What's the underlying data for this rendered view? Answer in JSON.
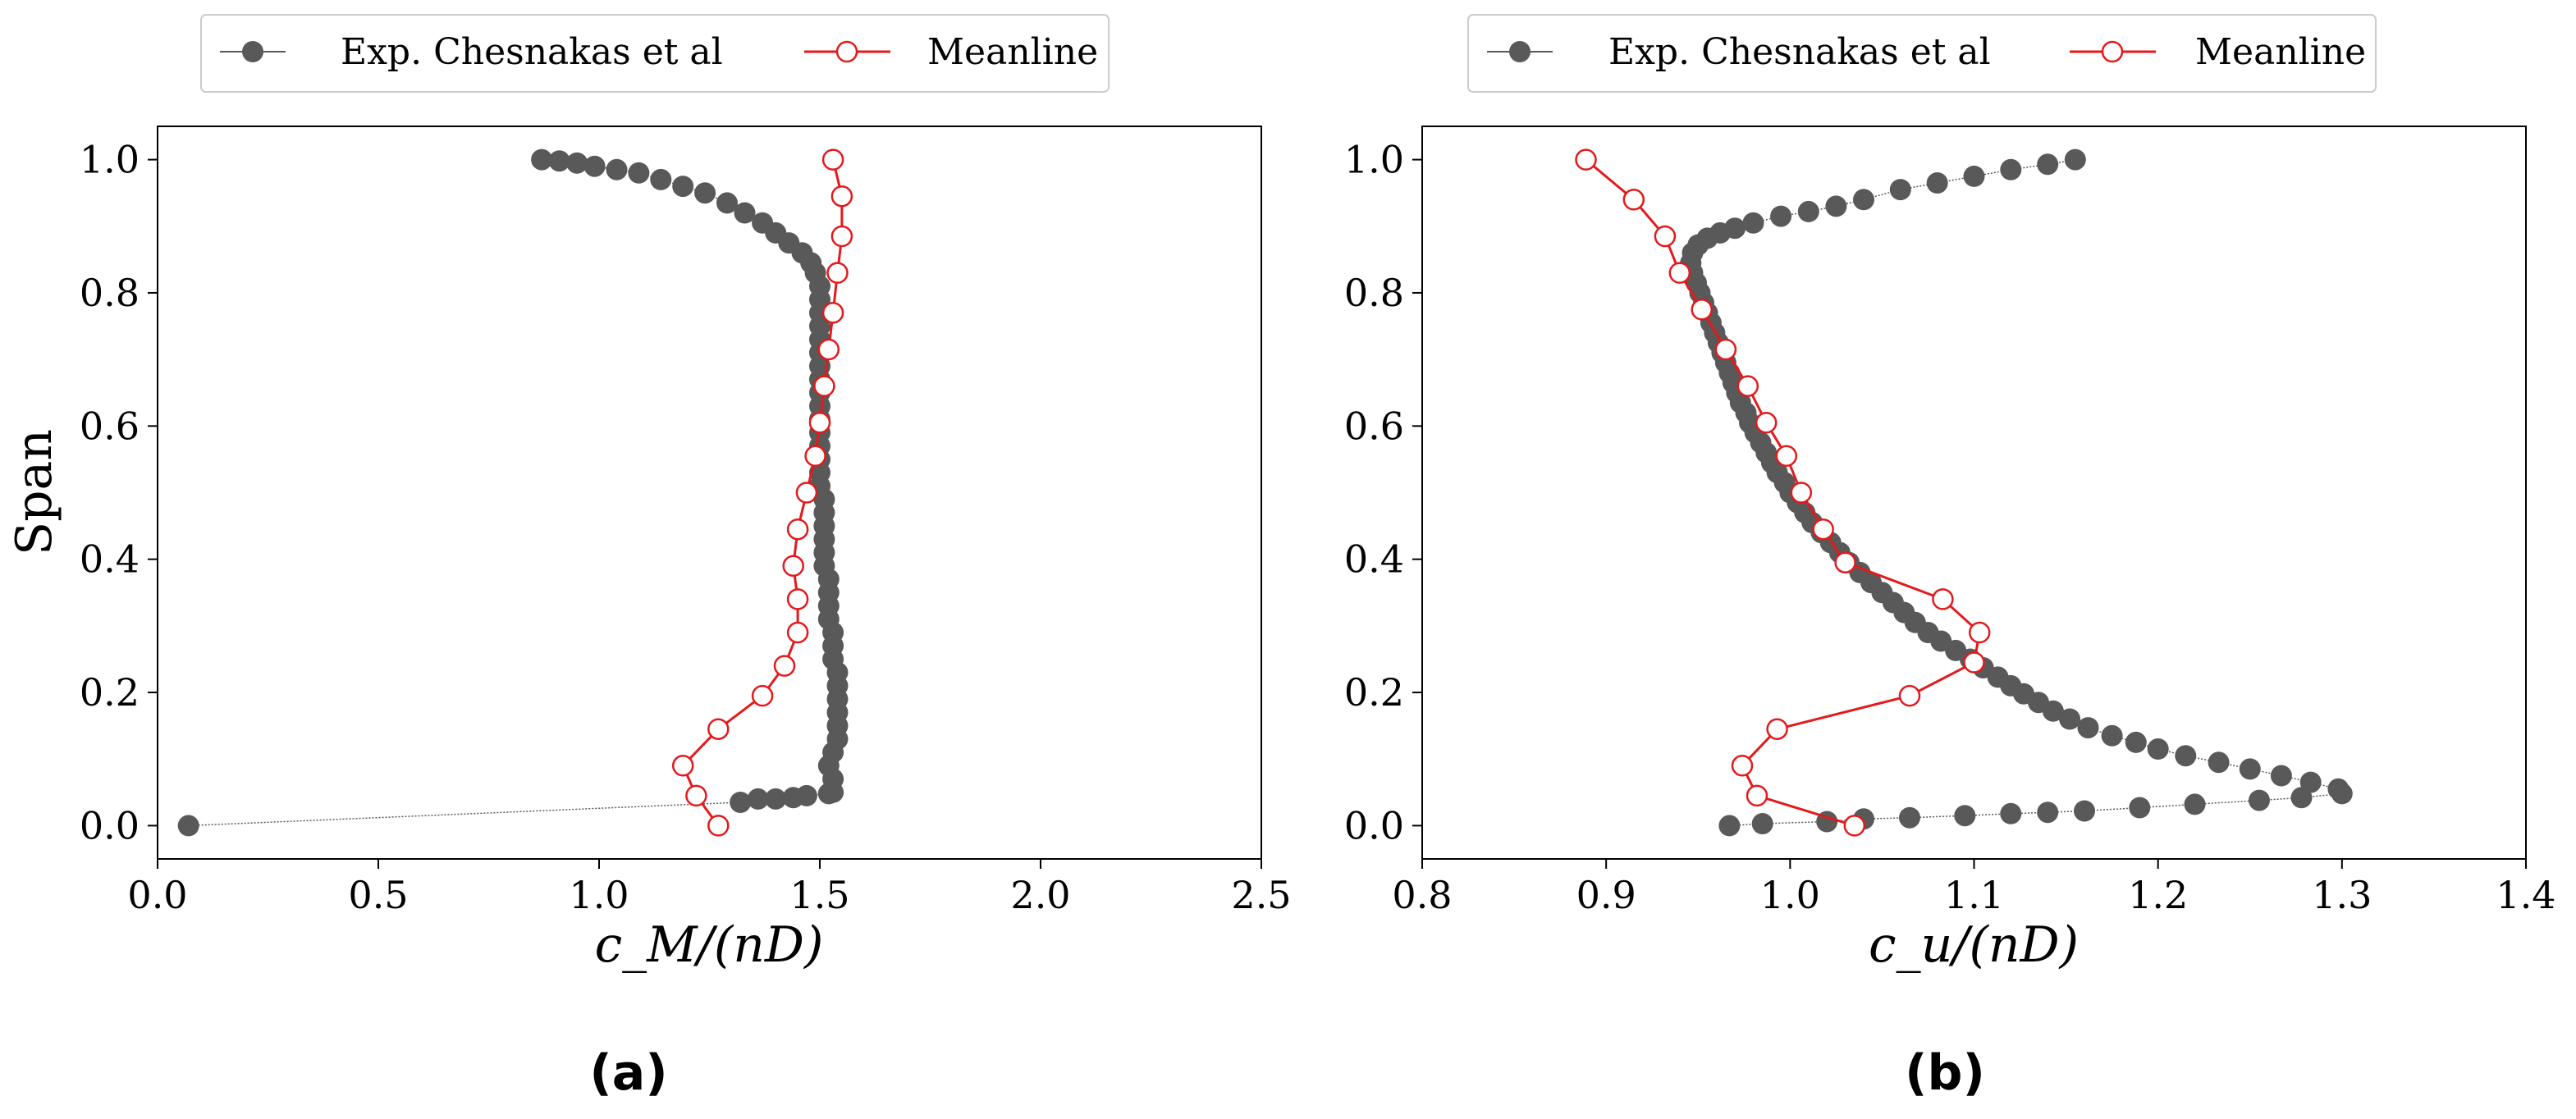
{
  "chart_data": [
    {
      "type": "line",
      "panel_label": "(a)",
      "xlabel": "c_M/(nD)",
      "ylabel": "Span",
      "xlim": [
        0.0,
        2.5
      ],
      "ylim": [
        -0.05,
        1.05
      ],
      "xticks": [
        "0.0",
        "0.5",
        "1.0",
        "1.5",
        "2.0",
        "2.5"
      ],
      "yticks": [
        "0.0",
        "0.2",
        "0.4",
        "0.6",
        "0.8",
        "1.0"
      ],
      "legend_position": "top-center-outside",
      "series": [
        {
          "name": "Exp. Chesnakas et al",
          "color": "#595959",
          "marker": "filled-circle",
          "line": "thin-dotted-gray",
          "points": [
            [
              0.07,
              0.0
            ],
            [
              1.32,
              0.035
            ],
            [
              1.36,
              0.04
            ],
            [
              1.4,
              0.04
            ],
            [
              1.44,
              0.042
            ],
            [
              1.47,
              0.045
            ],
            [
              1.52,
              0.048
            ],
            [
              1.53,
              0.05
            ],
            [
              1.53,
              0.07
            ],
            [
              1.52,
              0.09
            ],
            [
              1.53,
              0.11
            ],
            [
              1.54,
              0.13
            ],
            [
              1.54,
              0.15
            ],
            [
              1.54,
              0.17
            ],
            [
              1.54,
              0.19
            ],
            [
              1.54,
              0.21
            ],
            [
              1.54,
              0.23
            ],
            [
              1.53,
              0.25
            ],
            [
              1.53,
              0.27
            ],
            [
              1.53,
              0.29
            ],
            [
              1.52,
              0.31
            ],
            [
              1.52,
              0.33
            ],
            [
              1.52,
              0.35
            ],
            [
              1.52,
              0.37
            ],
            [
              1.51,
              0.39
            ],
            [
              1.51,
              0.41
            ],
            [
              1.51,
              0.43
            ],
            [
              1.51,
              0.45
            ],
            [
              1.51,
              0.47
            ],
            [
              1.51,
              0.49
            ],
            [
              1.5,
              0.51
            ],
            [
              1.5,
              0.53
            ],
            [
              1.5,
              0.55
            ],
            [
              1.5,
              0.57
            ],
            [
              1.5,
              0.59
            ],
            [
              1.5,
              0.61
            ],
            [
              1.5,
              0.63
            ],
            [
              1.5,
              0.65
            ],
            [
              1.5,
              0.67
            ],
            [
              1.5,
              0.69
            ],
            [
              1.5,
              0.71
            ],
            [
              1.5,
              0.73
            ],
            [
              1.5,
              0.75
            ],
            [
              1.5,
              0.77
            ],
            [
              1.5,
              0.79
            ],
            [
              1.5,
              0.81
            ],
            [
              1.49,
              0.83
            ],
            [
              1.48,
              0.845
            ],
            [
              1.46,
              0.86
            ],
            [
              1.43,
              0.875
            ],
            [
              1.4,
              0.89
            ],
            [
              1.37,
              0.905
            ],
            [
              1.33,
              0.92
            ],
            [
              1.29,
              0.935
            ],
            [
              1.24,
              0.95
            ],
            [
              1.19,
              0.96
            ],
            [
              1.14,
              0.97
            ],
            [
              1.09,
              0.98
            ],
            [
              1.04,
              0.985
            ],
            [
              0.99,
              0.99
            ],
            [
              0.95,
              0.995
            ],
            [
              0.91,
              0.998
            ],
            [
              0.87,
              1.0
            ]
          ]
        },
        {
          "name": "Meanline",
          "color": "#e31a1c",
          "marker": "open-circle",
          "line": "solid-red",
          "points": [
            [
              1.27,
              0.0
            ],
            [
              1.22,
              0.045
            ],
            [
              1.19,
              0.09
            ],
            [
              1.27,
              0.145
            ],
            [
              1.37,
              0.195
            ],
            [
              1.42,
              0.24
            ],
            [
              1.45,
              0.29
            ],
            [
              1.45,
              0.34
            ],
            [
              1.44,
              0.39
            ],
            [
              1.45,
              0.445
            ],
            [
              1.47,
              0.5
            ],
            [
              1.49,
              0.555
            ],
            [
              1.5,
              0.605
            ],
            [
              1.51,
              0.66
            ],
            [
              1.52,
              0.715
            ],
            [
              1.53,
              0.77
            ],
            [
              1.54,
              0.83
            ],
            [
              1.55,
              0.885
            ],
            [
              1.55,
              0.945
            ],
            [
              1.53,
              1.0
            ]
          ]
        }
      ]
    },
    {
      "type": "line",
      "panel_label": "(b)",
      "xlabel": "c_u/(nD)",
      "ylabel": "",
      "xlim": [
        0.8,
        1.4
      ],
      "ylim": [
        -0.05,
        1.05
      ],
      "xticks": [
        "0.8",
        "0.9",
        "1.0",
        "1.1",
        "1.2",
        "1.3",
        "1.4"
      ],
      "yticks": [
        "0.0",
        "0.2",
        "0.4",
        "0.6",
        "0.8",
        "1.0"
      ],
      "legend_position": "top-center-outside",
      "series": [
        {
          "name": "Exp. Chesnakas et al",
          "color": "#595959",
          "marker": "filled-circle",
          "line": "thin-dotted-gray",
          "points": [
            [
              0.967,
              0.0
            ],
            [
              0.985,
              0.003
            ],
            [
              1.02,
              0.006
            ],
            [
              1.04,
              0.01
            ],
            [
              1.065,
              0.012
            ],
            [
              1.095,
              0.015
            ],
            [
              1.12,
              0.018
            ],
            [
              1.14,
              0.02
            ],
            [
              1.16,
              0.022
            ],
            [
              1.19,
              0.027
            ],
            [
              1.22,
              0.032
            ],
            [
              1.255,
              0.038
            ],
            [
              1.278,
              0.042
            ],
            [
              1.3,
              0.048
            ],
            [
              1.298,
              0.055
            ],
            [
              1.283,
              0.065
            ],
            [
              1.267,
              0.075
            ],
            [
              1.25,
              0.085
            ],
            [
              1.233,
              0.095
            ],
            [
              1.215,
              0.105
            ],
            [
              1.2,
              0.115
            ],
            [
              1.188,
              0.125
            ],
            [
              1.175,
              0.135
            ],
            [
              1.162,
              0.147
            ],
            [
              1.152,
              0.16
            ],
            [
              1.143,
              0.172
            ],
            [
              1.135,
              0.185
            ],
            [
              1.127,
              0.198
            ],
            [
              1.12,
              0.21
            ],
            [
              1.113,
              0.223
            ],
            [
              1.105,
              0.237
            ],
            [
              1.098,
              0.25
            ],
            [
              1.09,
              0.263
            ],
            [
              1.082,
              0.277
            ],
            [
              1.075,
              0.29
            ],
            [
              1.068,
              0.305
            ],
            [
              1.062,
              0.32
            ],
            [
              1.056,
              0.335
            ],
            [
              1.05,
              0.35
            ],
            [
              1.044,
              0.365
            ],
            [
              1.038,
              0.38
            ],
            [
              1.032,
              0.395
            ],
            [
              1.027,
              0.41
            ],
            [
              1.022,
              0.425
            ],
            [
              1.017,
              0.44
            ],
            [
              1.012,
              0.455
            ],
            [
              1.008,
              0.47
            ],
            [
              1.004,
              0.485
            ],
            [
              1.0,
              0.5
            ],
            [
              0.997,
              0.515
            ],
            [
              0.993,
              0.53
            ],
            [
              0.99,
              0.545
            ],
            [
              0.987,
              0.56
            ],
            [
              0.984,
              0.575
            ],
            [
              0.981,
              0.59
            ],
            [
              0.978,
              0.605
            ],
            [
              0.976,
              0.62
            ],
            [
              0.973,
              0.635
            ],
            [
              0.971,
              0.65
            ],
            [
              0.969,
              0.665
            ],
            [
              0.967,
              0.68
            ],
            [
              0.965,
              0.695
            ],
            [
              0.963,
              0.71
            ],
            [
              0.961,
              0.725
            ],
            [
              0.959,
              0.74
            ],
            [
              0.957,
              0.755
            ],
            [
              0.955,
              0.77
            ],
            [
              0.953,
              0.785
            ],
            [
              0.951,
              0.8
            ],
            [
              0.949,
              0.815
            ],
            [
              0.947,
              0.83
            ],
            [
              0.946,
              0.845
            ],
            [
              0.947,
              0.86
            ],
            [
              0.95,
              0.872
            ],
            [
              0.955,
              0.882
            ],
            [
              0.962,
              0.89
            ],
            [
              0.97,
              0.897
            ],
            [
              0.98,
              0.905
            ],
            [
              0.995,
              0.915
            ],
            [
              1.01,
              0.922
            ],
            [
              1.025,
              0.93
            ],
            [
              1.04,
              0.94
            ],
            [
              1.06,
              0.955
            ],
            [
              1.08,
              0.965
            ],
            [
              1.1,
              0.975
            ],
            [
              1.12,
              0.985
            ],
            [
              1.14,
              0.993
            ],
            [
              1.155,
              1.0
            ]
          ]
        },
        {
          "name": "Meanline",
          "color": "#e31a1c",
          "marker": "open-circle",
          "line": "solid-red",
          "points": [
            [
              1.035,
              0.0
            ],
            [
              0.982,
              0.045
            ],
            [
              0.974,
              0.09
            ],
            [
              0.993,
              0.145
            ],
            [
              1.065,
              0.195
            ],
            [
              1.1,
              0.245
            ],
            [
              1.103,
              0.29
            ],
            [
              1.083,
              0.34
            ],
            [
              1.03,
              0.395
            ],
            [
              1.018,
              0.445
            ],
            [
              1.006,
              0.5
            ],
            [
              0.998,
              0.555
            ],
            [
              0.987,
              0.605
            ],
            [
              0.977,
              0.66
            ],
            [
              0.965,
              0.715
            ],
            [
              0.952,
              0.775
            ],
            [
              0.94,
              0.83
            ],
            [
              0.932,
              0.885
            ],
            [
              0.915,
              0.94
            ],
            [
              0.889,
              1.0
            ]
          ]
        }
      ]
    }
  ]
}
